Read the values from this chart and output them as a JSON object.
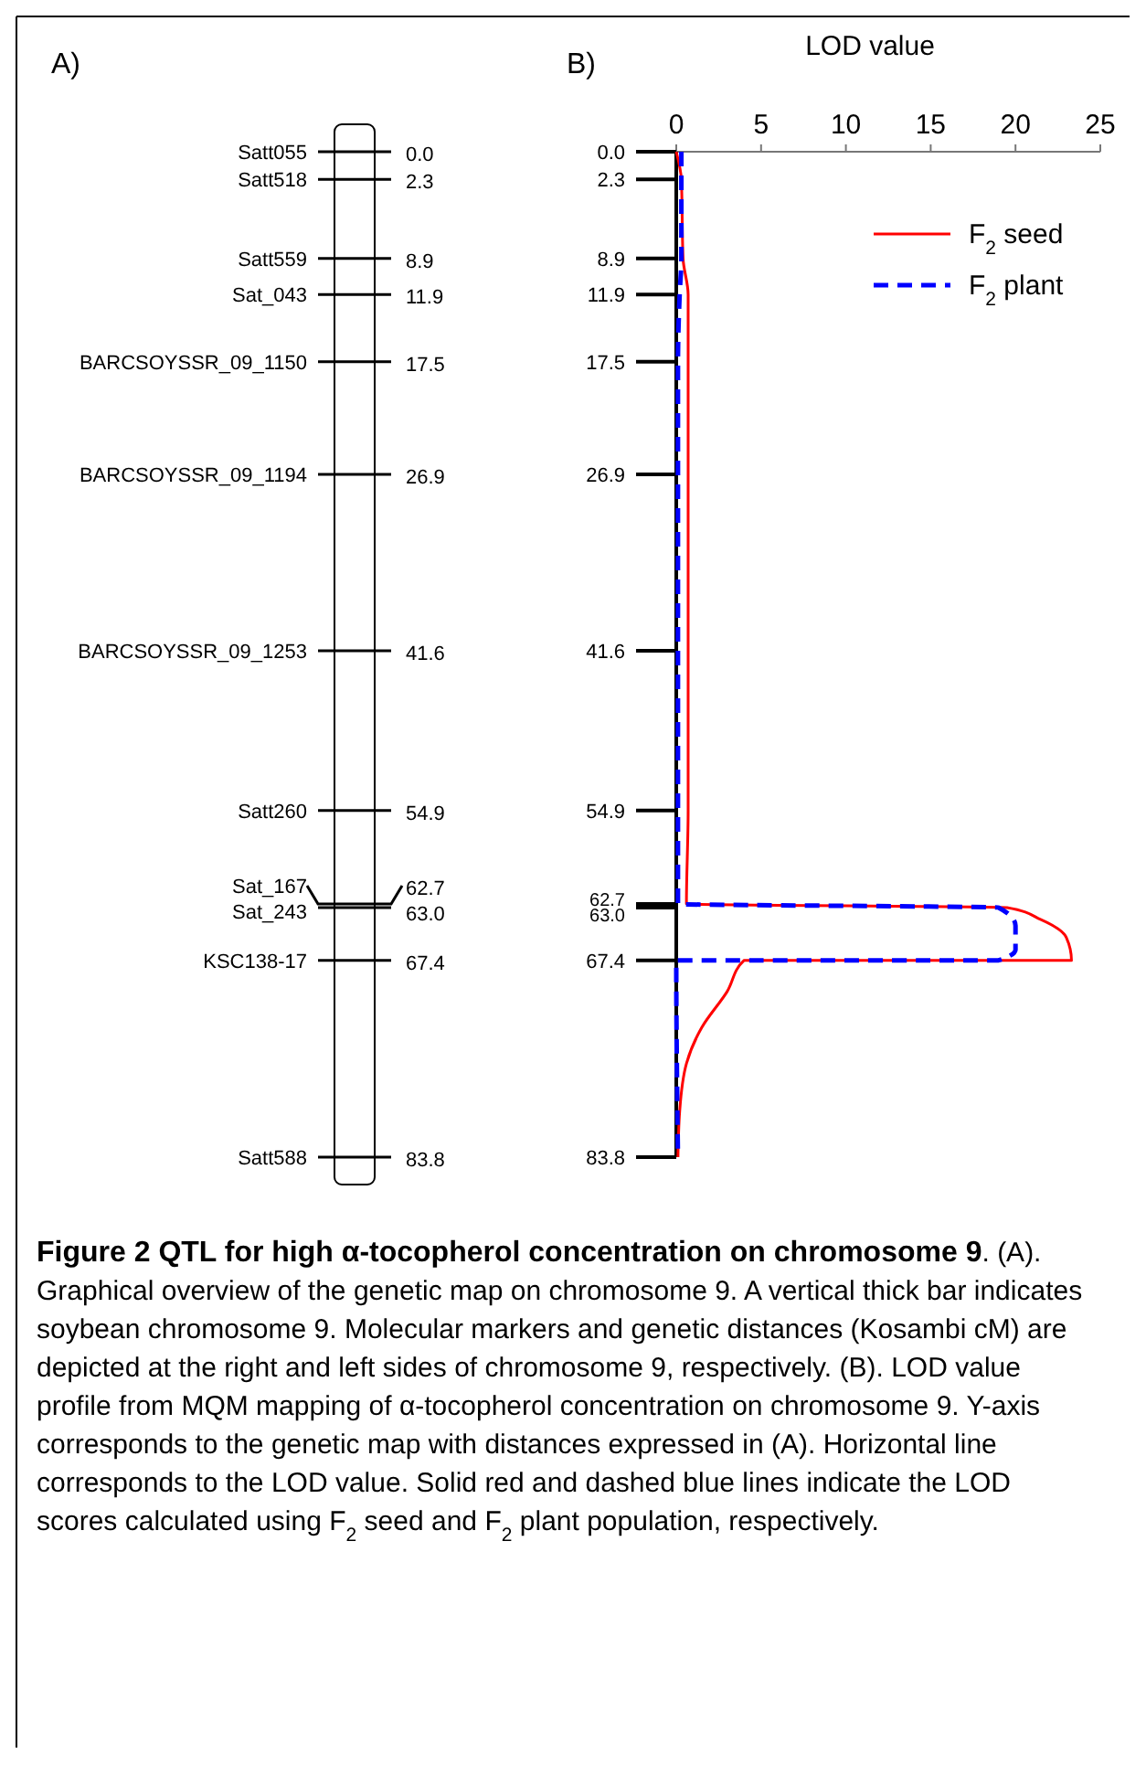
{
  "chart_data": [
    {
      "type": "other",
      "title": "A)",
      "categories": [
        "Satt055",
        "Satt518",
        "Satt559",
        "Sat_043",
        "BARCSOYSSR_09_1150",
        "BARCSOYSSR_09_1194",
        "BARCSOYSSR_09_1253",
        "Satt260",
        "Sat_167",
        "Sat_243",
        "KSC138-17",
        "Satt588"
      ],
      "values": [
        0.0,
        2.3,
        8.9,
        11.9,
        17.5,
        26.9,
        41.6,
        54.9,
        62.7,
        63.0,
        67.4,
        83.8
      ],
      "value_labels": [
        "0.0",
        "2.3",
        "8.9",
        "11.9",
        "17.5",
        "26.9",
        "41.6",
        "54.9",
        "62.7",
        "63.0",
        "67.4",
        "83.8"
      ]
    },
    {
      "type": "line",
      "title": "B)",
      "xlabel": "LOD value",
      "xlim": [
        0,
        25
      ],
      "xticks": [
        0,
        5,
        10,
        15,
        20,
        25
      ],
      "ylim": [
        83.8,
        0
      ],
      "yticks": [
        {
          "value": 0,
          "label": "0.0"
        },
        2.3,
        8.9,
        11.9,
        17.5,
        26.9,
        41.6,
        54.9,
        62.7,
        {
          "value": 63,
          "label": "63.0"
        },
        67.4,
        83.8
      ],
      "legend": "top right",
      "series": [
        {
          "name": "F$_{2}$ seed",
          "color": "#ff0000",
          "line_style": "solid",
          "x": [
            0,
            0.3,
            0.4,
            0.7,
            0.7,
            0.7,
            0.7,
            0.6,
            19.5,
            21.5,
            23,
            23.3,
            4.0,
            3.0,
            1.5,
            0.6,
            0.2,
            0.1
          ],
          "values": [
            0,
            2.3,
            8.9,
            11.9,
            26.9,
            41.6,
            54.9,
            62.7,
            63.0,
            64.0,
            65.5,
            67.4,
            67.4,
            70,
            73,
            76,
            80,
            83.8
          ]
        },
        {
          "name": "F$_{2}$ plant",
          "color": "#0000ff",
          "line_style": "dashed",
          "x": [
            0.3,
            0.3,
            0.2,
            0.1,
            0.1,
            19,
            20,
            20,
            19,
            0,
            0.1
          ],
          "values": [
            0,
            8.9,
            11.9,
            17.5,
            62.7,
            63.0,
            64.5,
            66.5,
            67.4,
            67.4,
            83.8
          ]
        }
      ],
      "annotations": [
        "Figure 2 QTL for high α-tocopherol concentration on chromosome 9",
        ". (A). Graphical overview of the genetic map on chromosome 9. A vertical thick bar indicates soybean chromosome 9. Molecular markers and genetic distances (Kosambi cM) are depicted at the right and left sides of chromosome 9, respectively. (B). LOD value profile from MQM mapping of α-tocopherol concentration on chromosome 9. Y-axis corresponds to the genetic map with distances expressed in (A). Horizontal line corresponds to the LOD value. Solid red and dashed blue lines indicate the LOD scores calculated using F$_{2}$ seed and F$_{2}$ plant population, respectively."
      ]
    }
  ]
}
